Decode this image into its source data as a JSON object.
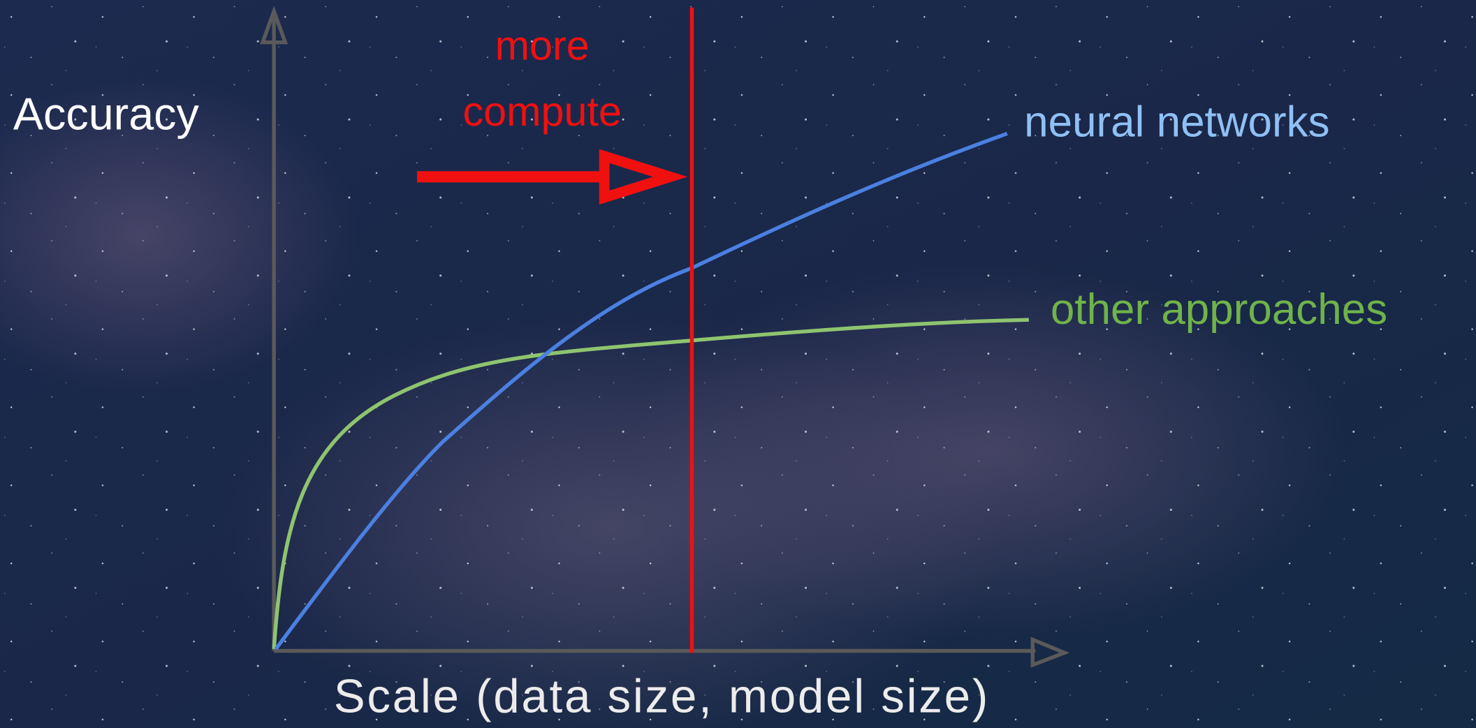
{
  "axes": {
    "y_label": "Accuracy",
    "x_label": "Scale (data size, model size)"
  },
  "annotation": {
    "lines": [
      "more",
      "compute"
    ]
  },
  "curves": [
    {
      "label": "neural networks"
    },
    {
      "label": "other approaches"
    }
  ]
}
